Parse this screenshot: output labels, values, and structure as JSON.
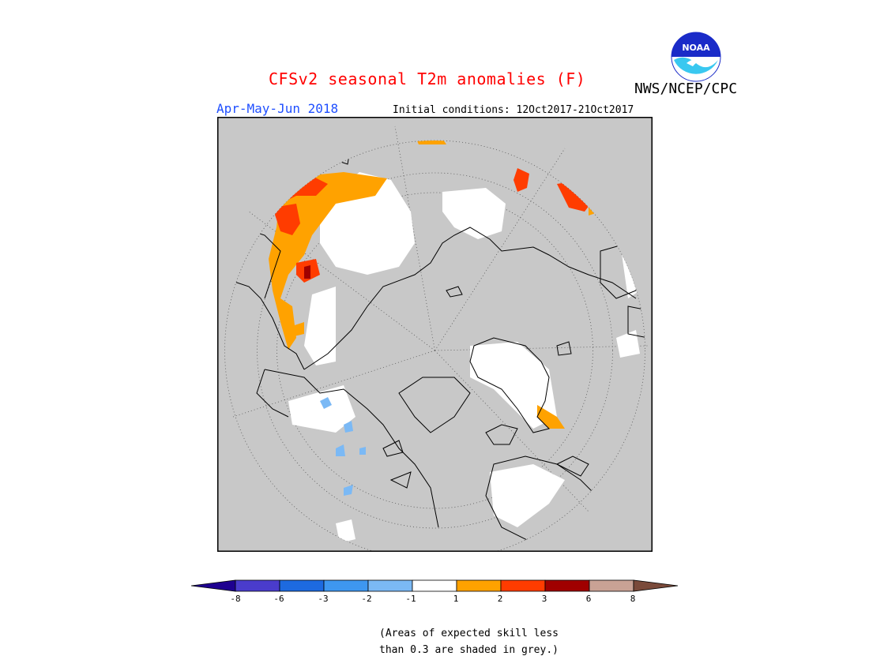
{
  "header": {
    "title": "CFSv2 seasonal T2m anomalies (F)",
    "agency": "NWS/NCEP/CPC",
    "season": "Apr-May-Jun 2018",
    "initial_conditions": "Initial conditions: 12Oct2017-21Oct2017",
    "logo_text": "NOAA"
  },
  "map": {
    "projection": "north-polar-stereographic",
    "background_grey": "#c8c8c8",
    "coastline_color": "#000000",
    "graticule": "dotted"
  },
  "legend": {
    "tick_labels": [
      "-8",
      "-6",
      "-3",
      "-2",
      "-1",
      "1",
      "2",
      "3",
      "6",
      "8"
    ],
    "colors": [
      "#1e0090",
      "#4a3ccc",
      "#1d6ae0",
      "#3e97f0",
      "#7bb9f5",
      "#ffffff",
      "#ffa200",
      "#ff3c00",
      "#a00000",
      "#c9a295",
      "#7a4a3a"
    ]
  },
  "note": {
    "line1": "(Areas of expected skill less",
    "line2": "than 0.3 are shaded in grey.)"
  }
}
